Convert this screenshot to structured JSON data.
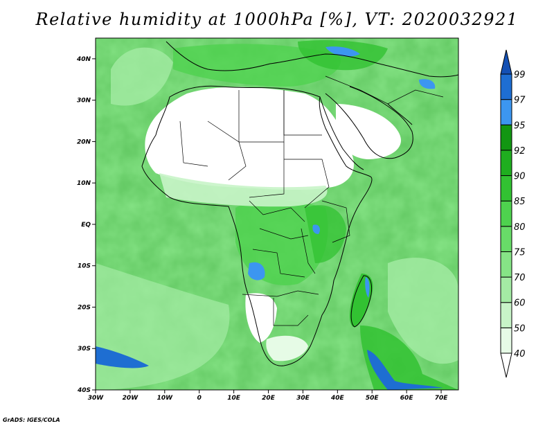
{
  "title": "Relative humidity at 1000hPa [%], VT: 2020032921",
  "footer": "GrADS: IGES/COLA",
  "map": {
    "lon_range": [
      -30,
      75
    ],
    "lat_range": [
      -40,
      45
    ],
    "lat_ticks": [
      {
        "value": 40,
        "label": "40N"
      },
      {
        "value": 30,
        "label": "30N"
      },
      {
        "value": 20,
        "label": "20N"
      },
      {
        "value": 10,
        "label": "10N"
      },
      {
        "value": 0,
        "label": "EQ"
      },
      {
        "value": -10,
        "label": "10S"
      },
      {
        "value": -20,
        "label": "20S"
      },
      {
        "value": -30,
        "label": "30S"
      },
      {
        "value": -40,
        "label": "40S"
      }
    ],
    "lon_ticks": [
      {
        "value": -30,
        "label": "30W"
      },
      {
        "value": -20,
        "label": "20W"
      },
      {
        "value": -10,
        "label": "10W"
      },
      {
        "value": 0,
        "label": "0"
      },
      {
        "value": 10,
        "label": "10E"
      },
      {
        "value": 20,
        "label": "20E"
      },
      {
        "value": 30,
        "label": "30E"
      },
      {
        "value": 40,
        "label": "40E"
      },
      {
        "value": 50,
        "label": "50E"
      },
      {
        "value": 60,
        "label": "60E"
      },
      {
        "value": 70,
        "label": "70E"
      }
    ]
  },
  "colorbar": {
    "bins": [
      {
        "upper": 40,
        "color": "#ffffff"
      },
      {
        "upper": 50,
        "color": "#e6fbe6"
      },
      {
        "upper": 60,
        "color": "#c8f4c8"
      },
      {
        "upper": 70,
        "color": "#a4eba4"
      },
      {
        "upper": 75,
        "color": "#86e486"
      },
      {
        "upper": 80,
        "color": "#68dc68"
      },
      {
        "upper": 85,
        "color": "#4ed24e"
      },
      {
        "upper": 90,
        "color": "#32c232"
      },
      {
        "upper": 92,
        "color": "#1fae1f"
      },
      {
        "upper": 95,
        "color": "#129612"
      },
      {
        "upper": 97,
        "color": "#3c96f0"
      },
      {
        "upper": 99,
        "color": "#1e6ed2"
      },
      {
        "upper": 100,
        "color": "#1450b4"
      }
    ],
    "labels": [
      "40",
      "50",
      "60",
      "70",
      "75",
      "80",
      "85",
      "90",
      "92",
      "95",
      "97",
      "99"
    ]
  }
}
